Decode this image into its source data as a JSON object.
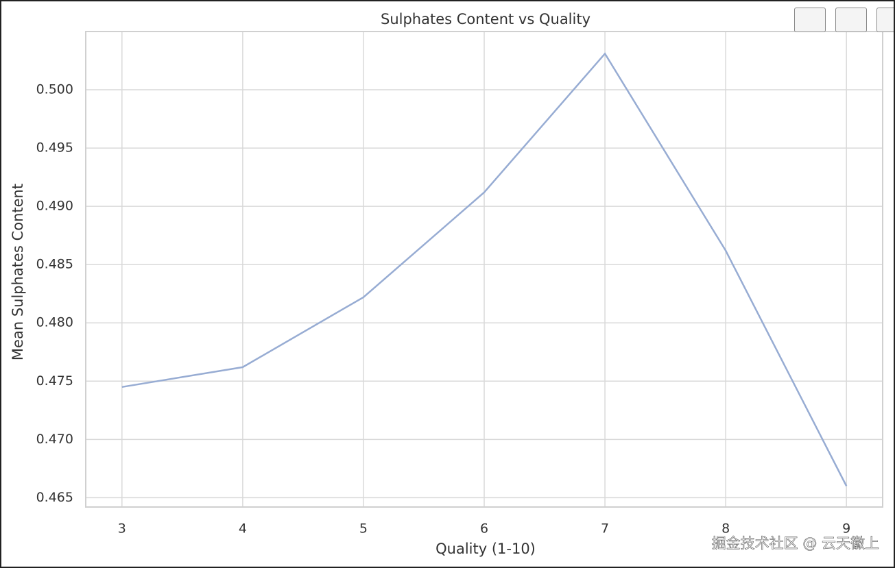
{
  "chart_data": {
    "type": "line",
    "title": "Sulphates Content vs Quality",
    "x_label": "Quality (1-10)",
    "y_label": "Mean Sulphates Content",
    "x": [
      3,
      4,
      5,
      6,
      7,
      8,
      9
    ],
    "values": [
      0.4745,
      0.4762,
      0.4822,
      0.4912,
      0.5031,
      0.4862,
      0.466
    ],
    "color": "#97acd3",
    "xlim": [
      2.7,
      9.3
    ],
    "xticks": [
      3,
      4,
      5,
      6,
      7,
      8,
      9
    ],
    "ylim": [
      0.4642,
      0.505
    ],
    "yticks": [
      0.465,
      {
        "value": 0.47,
        "label": "0.470"
      },
      0.475,
      {
        "value": 0.48,
        "label": "0.480"
      },
      0.485,
      {
        "value": 0.49,
        "label": "0.490"
      },
      0.495,
      {
        "value": 0.5,
        "label": "0.500"
      }
    ],
    "grid": true,
    "watermark": "掘金技术社区 @ 云天徽上"
  }
}
